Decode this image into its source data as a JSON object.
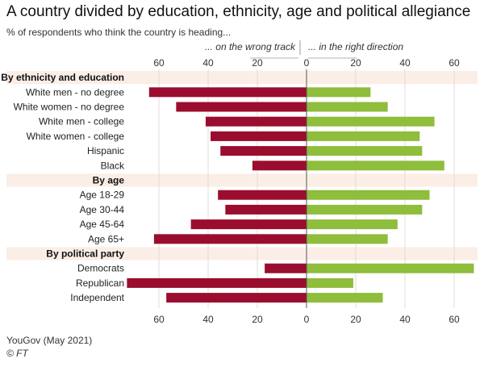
{
  "header": {
    "title": "A country divided by education, ethnicity, age and political allegiance",
    "subtitle": "% of respondents who think the country is heading..."
  },
  "footer": {
    "source": "YouGov (May 2021)",
    "copyright": "© FT"
  },
  "colors": {
    "wrong_track": "#9b0d2e",
    "right_direction": "#8fbd3c",
    "section_band": "#fbeee6",
    "axis": "#555555"
  },
  "chart_data": {
    "type": "bar",
    "orientation": "horizontal-diverging",
    "title": "A country divided by education, ethnicity, age and political allegiance",
    "subtitle": "% of respondents who think the country is heading...",
    "left_label": "... on the wrong track",
    "right_label": "... in the right direction",
    "ticks": [
      60,
      40,
      20,
      0,
      20,
      40,
      60
    ],
    "xlim": [
      -75,
      70
    ],
    "series": [
      {
        "name": "... on the wrong track",
        "color": "#9b0d2e"
      },
      {
        "name": "... in the right direction",
        "color": "#8fbd3c"
      }
    ],
    "groups": [
      {
        "label": "By ethnicity and education",
        "rows": [
          {
            "label": "White men - no degree",
            "wrong": 64,
            "right": 26
          },
          {
            "label": "White women - no degree",
            "wrong": 53,
            "right": 33
          },
          {
            "label": "White men - college",
            "wrong": 41,
            "right": 52
          },
          {
            "label": "White women - college",
            "wrong": 39,
            "right": 46
          },
          {
            "label": "Hispanic",
            "wrong": 35,
            "right": 47
          },
          {
            "label": "Black",
            "wrong": 22,
            "right": 56
          }
        ]
      },
      {
        "label": "By age",
        "rows": [
          {
            "label": "Age 18-29",
            "wrong": 36,
            "right": 50
          },
          {
            "label": "Age 30-44",
            "wrong": 33,
            "right": 47
          },
          {
            "label": "Age 45-64",
            "wrong": 47,
            "right": 37
          },
          {
            "label": "Age 65+",
            "wrong": 62,
            "right": 33
          }
        ]
      },
      {
        "label": "By political party",
        "rows": [
          {
            "label": "Democrats",
            "wrong": 17,
            "right": 68
          },
          {
            "label": "Republican",
            "wrong": 73,
            "right": 19
          },
          {
            "label": "Independent",
            "wrong": 57,
            "right": 31
          }
        ]
      }
    ],
    "source": "YouGov (May 2021)"
  }
}
